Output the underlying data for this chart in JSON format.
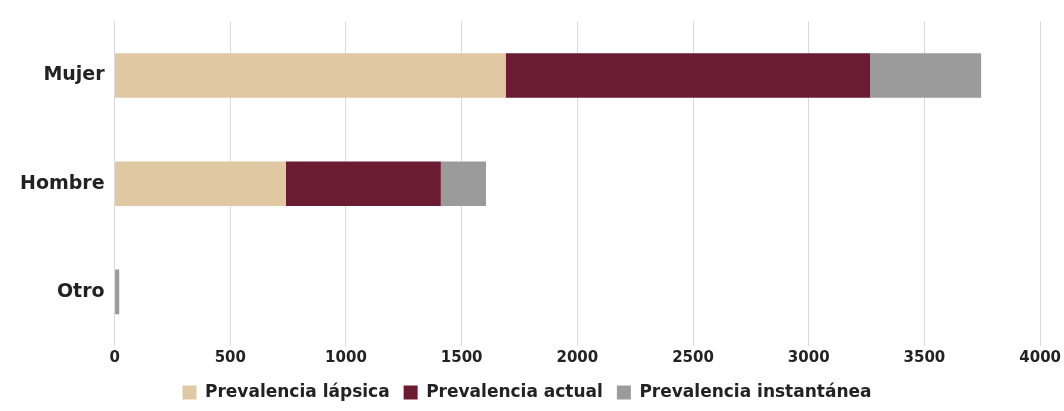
{
  "chart_data": {
    "type": "bar",
    "orientation": "horizontal",
    "stacked": true,
    "categories": [
      "Mujer",
      "Hombre",
      "Otro"
    ],
    "series": [
      {
        "name": "Prevalencia lápsica",
        "color": "#dfc8a2",
        "values": [
          1690,
          740,
          0
        ]
      },
      {
        "name": "Prevalencia actual",
        "color": "#6b1c32",
        "values": [
          1575,
          670,
          0
        ]
      },
      {
        "name": "Prevalencia instantánea",
        "color": "#9b9b9b",
        "values": [
          480,
          195,
          20
        ]
      }
    ],
    "xlim": [
      0,
      4000
    ],
    "xticks": [
      0,
      500,
      1000,
      1500,
      2000,
      2500,
      3000,
      3500,
      4000
    ],
    "grid": "x",
    "legend": "bottom"
  }
}
